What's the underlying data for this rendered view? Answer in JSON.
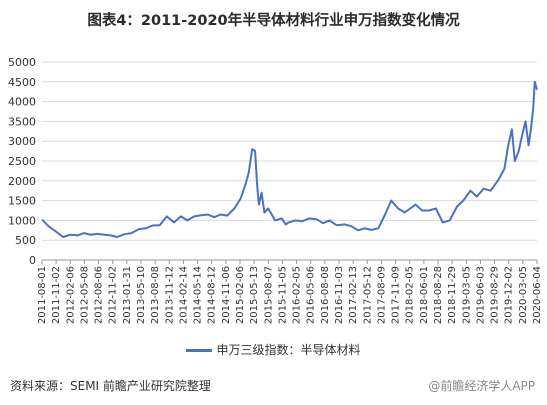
{
  "title": "图表4：2011-2020年半导体材料行业申万指数变化情况",
  "legend_label": "申万三级指数：半导体材料",
  "source": "资料来源：SEMI 前瞻产业研究院整理",
  "brand": "@前瞻经济学人APP",
  "colors": {
    "line": "#4a72c4",
    "grid": "#d9d9d9",
    "axis": "#999999"
  },
  "chart_data": {
    "type": "line",
    "title": "图表4：2011-2020年半导体材料行业申万指数变化情况",
    "xlabel": "",
    "ylabel": "",
    "ylim": [
      0,
      5000
    ],
    "yticks": [
      0,
      500,
      1000,
      1500,
      2000,
      2500,
      3000,
      3500,
      4000,
      4500,
      5000
    ],
    "grid": true,
    "legend_position": "bottom",
    "x_tick_labels": [
      "2011-08-01",
      "2011-11-02",
      "2012-02-06",
      "2012-05-08",
      "2012-08-06",
      "2012-11-02",
      "2013-01-31",
      "2013-05-10",
      "2013-08-08",
      "2013-11-12",
      "2014-02-14",
      "2014-05-14",
      "2014-08-12",
      "2014-11-06",
      "2015-02-06",
      "2015-05-13",
      "2015-08-07",
      "2015-11-05",
      "2016-02-05",
      "2016-05-06",
      "2016-08-08",
      "2016-11-03",
      "2017-02-13",
      "2017-05-12",
      "2017-08-09",
      "2017-11-09",
      "2018-02-05",
      "2018-06-01",
      "2018-08-28",
      "2018-11-29",
      "2019-03-05",
      "2019-06-03",
      "2019-08-29",
      "2019-12-02",
      "2020-03-05",
      "2020-06-04"
    ],
    "series": [
      {
        "name": "申万三级指数：半导体材料",
        "x": [
          "2011-08-01",
          "2011-09-15",
          "2011-11-02",
          "2011-12-20",
          "2012-02-06",
          "2012-03-25",
          "2012-05-08",
          "2012-06-20",
          "2012-08-06",
          "2012-09-20",
          "2012-11-02",
          "2012-12-15",
          "2013-01-31",
          "2013-03-20",
          "2013-05-10",
          "2013-06-25",
          "2013-08-08",
          "2013-09-25",
          "2013-11-12",
          "2013-12-30",
          "2014-02-14",
          "2014-03-30",
          "2014-05-14",
          "2014-06-30",
          "2014-08-12",
          "2014-09-25",
          "2014-11-06",
          "2014-12-20",
          "2015-02-06",
          "2015-03-20",
          "2015-04-20",
          "2015-05-13",
          "2015-06-05",
          "2015-06-25",
          "2015-07-08",
          "2015-07-20",
          "2015-08-07",
          "2015-08-26",
          "2015-09-20",
          "2015-11-05",
          "2015-12-20",
          "2016-01-15",
          "2016-02-05",
          "2016-03-20",
          "2016-05-06",
          "2016-06-20",
          "2016-08-08",
          "2016-09-20",
          "2016-11-03",
          "2016-12-20",
          "2017-02-13",
          "2017-03-30",
          "2017-05-12",
          "2017-06-25",
          "2017-08-09",
          "2017-09-25",
          "2017-11-09",
          "2017-12-20",
          "2018-02-05",
          "2018-03-20",
          "2018-06-01",
          "2018-07-15",
          "2018-08-28",
          "2018-10-15",
          "2018-11-29",
          "2019-01-15",
          "2019-03-05",
          "2019-04-15",
          "2019-06-03",
          "2019-07-15",
          "2019-08-29",
          "2019-10-15",
          "2019-12-02",
          "2020-01-15",
          "2020-02-10",
          "2020-03-05",
          "2020-03-25",
          "2020-04-20",
          "2020-05-10",
          "2020-06-04",
          "2020-06-25",
          "2020-07-10",
          "2020-07-25",
          "2020-08-05",
          "2020-08-20"
        ],
        "values": [
          1020,
          850,
          720,
          580,
          640,
          620,
          680,
          640,
          660,
          640,
          620,
          580,
          650,
          680,
          780,
          800,
          870,
          880,
          1100,
          950,
          1100,
          1000,
          1100,
          1130,
          1150,
          1080,
          1150,
          1120,
          1300,
          1550,
          1900,
          2200,
          2800,
          2750,
          1900,
          1400,
          1700,
          1200,
          1300,
          1000,
          1050,
          900,
          950,
          1000,
          980,
          1050,
          1030,
          930,
          1000,
          880,
          900,
          850,
          750,
          800,
          760,
          800,
          1150,
          1500,
          1300,
          1200,
          1400,
          1250,
          1250,
          1300,
          950,
          1000,
          1350,
          1500,
          1750,
          1600,
          1800,
          1750,
          2000,
          2300,
          2900,
          3300,
          2500,
          2750,
          3100,
          3500,
          2900,
          3300,
          3800,
          4500,
          4300
        ]
      }
    ]
  }
}
